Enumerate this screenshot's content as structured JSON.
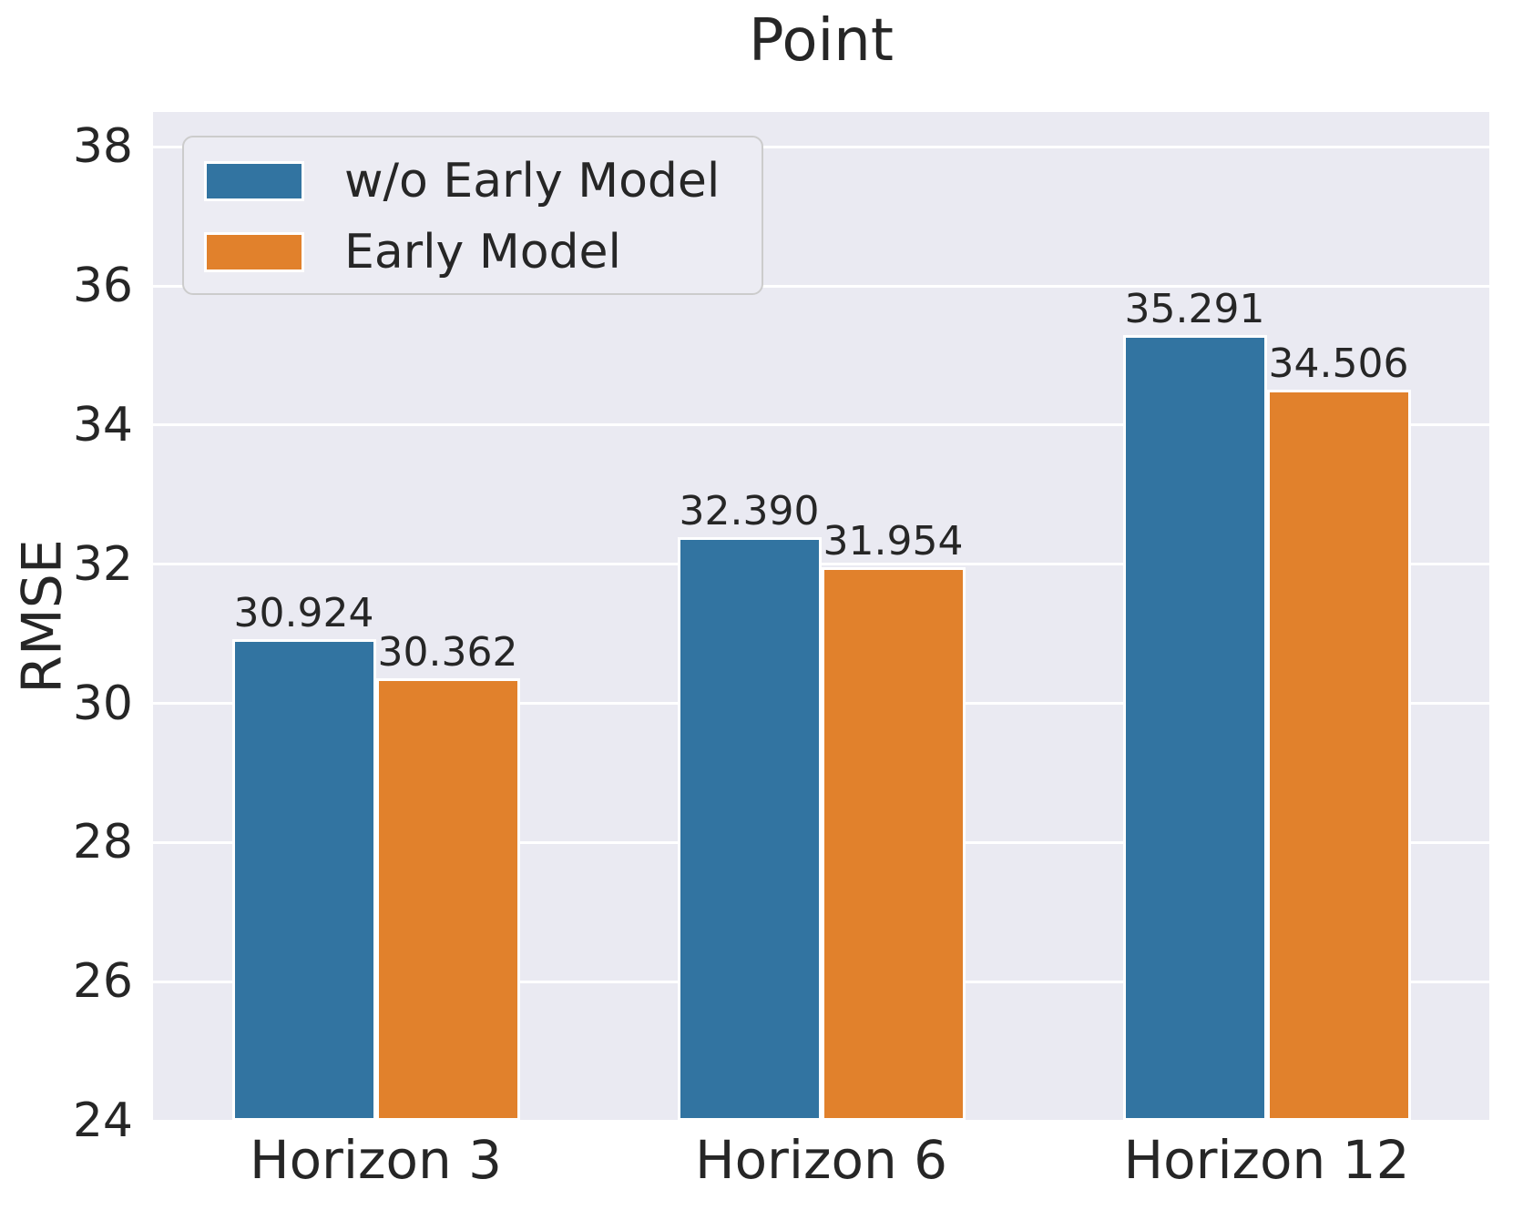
{
  "title": "Point",
  "chart_data": {
    "type": "bar",
    "title": "Point",
    "xlabel": "",
    "ylabel": "RMSE",
    "categories": [
      "Horizon 3",
      "Horizon 6",
      "Horizon 12"
    ],
    "series": [
      {
        "name": "w/o Early Model",
        "color": "#3274A1",
        "values": [
          30.924,
          32.39,
          35.291
        ],
        "labels": [
          "30.924",
          "32.390",
          "35.291"
        ]
      },
      {
        "name": "Early Model",
        "color": "#E1812C",
        "values": [
          30.362,
          31.954,
          34.506
        ],
        "labels": [
          "30.362",
          "31.954",
          "34.506"
        ]
      }
    ],
    "ylim": [
      24,
      38.5
    ],
    "yticks": [
      24,
      26,
      28,
      30,
      32,
      34,
      36,
      38
    ],
    "grid": true,
    "grid_color": "#FFFFFF",
    "plot_bg": "#EAEAF2",
    "text_color": "#262626",
    "legend_position": "upper left"
  }
}
